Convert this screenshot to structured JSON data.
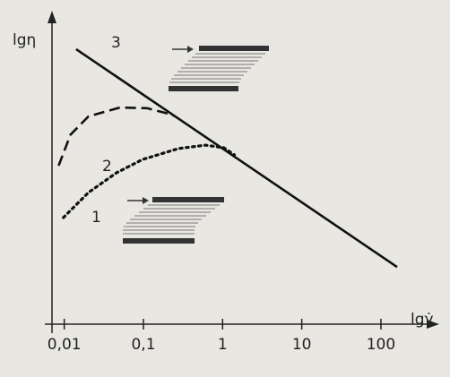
{
  "chart_data": {
    "type": "line",
    "y_label": "lgη",
    "x_label": "lgγ̇",
    "x_scale": "log",
    "xlim": [
      0.007,
      420
    ],
    "ylim": [
      0,
      100
    ],
    "xticks": [
      {
        "value": 0.01,
        "label": "0,01"
      },
      {
        "value": 0.1,
        "label": "0,1"
      },
      1,
      10,
      100
    ],
    "grid": false,
    "series": [
      {
        "name": "1",
        "color": "#111111",
        "dash": "dotted",
        "x": [
          0.00975,
          0.0203,
          0.0456,
          0.0975,
          0.277,
          0.608,
          1.03,
          1.41
        ],
        "values": [
          34.3,
          42.4,
          48.7,
          53.0,
          56.5,
          57.6,
          56.8,
          54.5
        ]
      },
      {
        "name": "2",
        "color": "#111111",
        "dash": "dashed",
        "x": [
          0.0085,
          0.012,
          0.0203,
          0.0507,
          0.111,
          0.1875,
          0.243
        ],
        "values": [
          51.0,
          61.0,
          66.9,
          69.7,
          69.5,
          68.0,
          67.1
        ]
      },
      {
        "name": "3",
        "color": "#111111",
        "dash": "solid",
        "x": [
          0.0141,
          160
        ],
        "values": [
          88.5,
          18.4
        ]
      }
    ]
  }
}
